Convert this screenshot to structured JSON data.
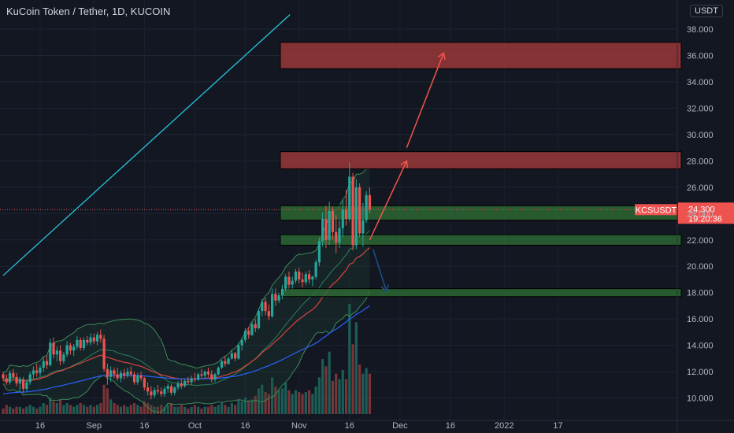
{
  "header": {
    "title": "KuCoin Token / Tether, 1D, KUCOIN",
    "currency_button": "USDT"
  },
  "colors": {
    "background": "#131722",
    "up": "#26a69a",
    "down": "#ef5350",
    "trendline": "#26c6da",
    "resistance_zone": "#a13a3a",
    "support_zone": "#2e6b34",
    "arrow_up": "#f0554c",
    "arrow_down": "#1e4e8c",
    "bb_band": "#3c8a57",
    "ma_red": "#d8423b",
    "ma_blue": "#2962ff"
  },
  "chart_data": {
    "type": "candlestick",
    "symbol": "KCSUSDT",
    "interval": "1D",
    "y_axis": {
      "ticks": [
        "10.000",
        "12.000",
        "14.000",
        "16.000",
        "18.000",
        "20.000",
        "22.000",
        "24.000",
        "26.000",
        "28.000",
        "30.000",
        "32.000",
        "34.000",
        "36.000",
        "38.000"
      ],
      "range": [
        8.3,
        38.9
      ],
      "position": "right"
    },
    "x_axis": {
      "ticks": [
        "16",
        "Sep",
        "16",
        "Oct",
        "16",
        "Nov",
        "16",
        "Dec",
        "16",
        "2022",
        "17"
      ],
      "start_date": "2021-08-10"
    },
    "last_price": {
      "symbol": "KCSUSDT",
      "value": "24.300",
      "countdown": "19:20:36"
    },
    "candles": [
      [
        11.8,
        12.0,
        11.3,
        11.5
      ],
      [
        11.5,
        11.8,
        11.0,
        11.2
      ],
      [
        11.2,
        12.1,
        11.0,
        11.9
      ],
      [
        11.9,
        12.2,
        11.4,
        11.6
      ],
      [
        11.6,
        11.9,
        10.9,
        11.1
      ],
      [
        11.1,
        11.6,
        10.6,
        11.4
      ],
      [
        11.4,
        11.6,
        10.4,
        10.7
      ],
      [
        10.7,
        11.4,
        10.5,
        11.2
      ],
      [
        11.2,
        12.0,
        11.0,
        11.8
      ],
      [
        11.8,
        12.4,
        11.5,
        12.1
      ],
      [
        12.1,
        12.6,
        11.6,
        11.9
      ],
      [
        11.9,
        12.5,
        11.6,
        12.3
      ],
      [
        12.3,
        13.1,
        12.0,
        12.8
      ],
      [
        12.8,
        13.2,
        12.2,
        12.5
      ],
      [
        12.5,
        14.5,
        12.4,
        14.2
      ],
      [
        14.2,
        14.6,
        13.0,
        13.3
      ],
      [
        13.3,
        13.9,
        12.8,
        13.6
      ],
      [
        13.6,
        14.0,
        12.5,
        12.8
      ],
      [
        12.8,
        13.5,
        12.6,
        13.3
      ],
      [
        13.3,
        14.3,
        13.1,
        14.0
      ],
      [
        14.0,
        14.2,
        13.3,
        13.6
      ],
      [
        13.6,
        14.1,
        13.2,
        13.9
      ],
      [
        13.9,
        14.7,
        13.7,
        14.4
      ],
      [
        14.4,
        14.6,
        13.6,
        13.8
      ],
      [
        13.8,
        14.6,
        13.6,
        14.4
      ],
      [
        14.4,
        14.7,
        14.0,
        14.2
      ],
      [
        14.2,
        14.9,
        14.0,
        14.6
      ],
      [
        14.6,
        14.9,
        14.1,
        14.3
      ],
      [
        14.3,
        15.0,
        14.0,
        14.8
      ],
      [
        14.8,
        15.2,
        14.2,
        14.5
      ],
      [
        14.5,
        14.8,
        12.0,
        12.2
      ],
      [
        12.2,
        12.6,
        11.0,
        11.6
      ],
      [
        11.6,
        12.4,
        11.2,
        12.1
      ],
      [
        12.1,
        12.3,
        11.5,
        11.8
      ],
      [
        11.8,
        12.3,
        11.3,
        11.5
      ],
      [
        11.5,
        12.1,
        11.2,
        11.9
      ],
      [
        11.9,
        12.2,
        11.4,
        11.7
      ],
      [
        11.7,
        12.3,
        11.5,
        12.0
      ],
      [
        12.0,
        12.4,
        11.6,
        11.8
      ],
      [
        11.8,
        12.0,
        11.0,
        11.2
      ],
      [
        11.2,
        11.9,
        11.0,
        11.7
      ],
      [
        11.7,
        12.0,
        11.3,
        11.5
      ],
      [
        11.5,
        11.6,
        10.6,
        10.8
      ],
      [
        10.8,
        11.2,
        10.2,
        10.5
      ],
      [
        10.5,
        10.9,
        9.9,
        10.2
      ],
      [
        10.2,
        10.8,
        10.0,
        10.6
      ],
      [
        10.6,
        11.0,
        10.3,
        10.5
      ],
      [
        10.5,
        10.8,
        10.1,
        10.3
      ],
      [
        10.3,
        10.9,
        10.1,
        10.7
      ],
      [
        10.7,
        11.1,
        10.4,
        10.9
      ],
      [
        10.9,
        11.1,
        10.2,
        10.4
      ],
      [
        10.4,
        10.9,
        10.2,
        10.8
      ],
      [
        10.8,
        11.3,
        10.6,
        11.1
      ],
      [
        11.1,
        11.4,
        10.7,
        10.9
      ],
      [
        10.9,
        11.4,
        10.8,
        11.3
      ],
      [
        11.3,
        11.6,
        11.0,
        11.2
      ],
      [
        11.2,
        11.7,
        11.0,
        11.5
      ],
      [
        11.5,
        11.9,
        11.2,
        11.4
      ],
      [
        11.4,
        11.9,
        11.3,
        11.8
      ],
      [
        11.8,
        12.2,
        11.5,
        11.7
      ],
      [
        11.7,
        12.1,
        11.5,
        12.0
      ],
      [
        12.0,
        12.3,
        11.6,
        11.8
      ],
      [
        11.8,
        12.1,
        11.2,
        11.4
      ],
      [
        11.4,
        11.9,
        11.2,
        11.8
      ],
      [
        11.8,
        12.4,
        11.7,
        12.3
      ],
      [
        12.3,
        12.9,
        12.2,
        12.8
      ],
      [
        12.8,
        13.2,
        12.4,
        12.6
      ],
      [
        12.6,
        13.1,
        12.5,
        13.0
      ],
      [
        13.0,
        13.6,
        12.9,
        13.4
      ],
      [
        13.4,
        13.5,
        12.8,
        13.0
      ],
      [
        13.0,
        14.2,
        12.9,
        14.0
      ],
      [
        14.0,
        14.6,
        13.6,
        14.4
      ],
      [
        14.4,
        15.3,
        14.2,
        15.1
      ],
      [
        15.1,
        15.4,
        14.5,
        14.8
      ],
      [
        14.8,
        15.8,
        14.7,
        15.6
      ],
      [
        15.6,
        16.0,
        15.0,
        15.3
      ],
      [
        15.3,
        16.8,
        15.2,
        16.6
      ],
      [
        16.6,
        17.5,
        16.2,
        17.3
      ],
      [
        17.3,
        17.6,
        16.3,
        16.6
      ],
      [
        16.6,
        17.1,
        15.9,
        16.2
      ],
      [
        16.2,
        18.3,
        16.1,
        17.9
      ],
      [
        17.9,
        18.3,
        17.0,
        17.4
      ],
      [
        17.4,
        18.0,
        17.2,
        17.8
      ],
      [
        17.8,
        18.6,
        17.5,
        18.3
      ],
      [
        18.3,
        19.4,
        18.1,
        19.2
      ],
      [
        19.2,
        19.6,
        18.3,
        18.6
      ],
      [
        18.6,
        19.2,
        18.3,
        18.9
      ],
      [
        18.9,
        19.8,
        18.7,
        19.6
      ],
      [
        19.6,
        19.9,
        18.7,
        19.0
      ],
      [
        19.0,
        19.5,
        18.4,
        18.8
      ],
      [
        18.8,
        19.6,
        18.6,
        19.4
      ],
      [
        19.4,
        19.7,
        18.7,
        19.0
      ],
      [
        19.0,
        19.3,
        18.5,
        19.2
      ],
      [
        19.2,
        20.5,
        19.0,
        20.3
      ],
      [
        20.3,
        22.2,
        20.0,
        21.9
      ],
      [
        21.9,
        24.1,
        21.5,
        23.6
      ],
      [
        23.6,
        24.6,
        21.4,
        22.0
      ],
      [
        22.0,
        24.9,
        21.6,
        24.2
      ],
      [
        24.2,
        24.5,
        22.0,
        22.6
      ],
      [
        22.6,
        23.9,
        21.0,
        21.8
      ],
      [
        21.8,
        23.5,
        21.4,
        22.9
      ],
      [
        22.9,
        25.0,
        22.2,
        24.3
      ],
      [
        24.3,
        25.8,
        23.1,
        23.6
      ],
      [
        23.6,
        27.9,
        23.4,
        26.8
      ],
      [
        26.8,
        27.1,
        21.2,
        21.6
      ],
      [
        21.6,
        26.6,
        21.3,
        26.0
      ],
      [
        26.0,
        26.3,
        22.2,
        22.5
      ],
      [
        22.5,
        24.8,
        21.5,
        23.5
      ],
      [
        23.5,
        25.7,
        23.3,
        25.4
      ],
      [
        25.4,
        26.0,
        24.0,
        24.3
      ]
    ],
    "volume": [
      3,
      5,
      4,
      3,
      4,
      4,
      3,
      4,
      5,
      4,
      3,
      4,
      6,
      5,
      9,
      7,
      6,
      8,
      5,
      6,
      5,
      4,
      5,
      6,
      5,
      4,
      5,
      4,
      5,
      6,
      16,
      14,
      8,
      6,
      5,
      4,
      5,
      4,
      5,
      6,
      5,
      4,
      7,
      6,
      5,
      4,
      4,
      5,
      4,
      5,
      6,
      4,
      4,
      5,
      4,
      3,
      4,
      5,
      4,
      3,
      4,
      4,
      5,
      4,
      5,
      6,
      5,
      4,
      6,
      5,
      8,
      7,
      9,
      7,
      8,
      10,
      14,
      16,
      12,
      11,
      20,
      15,
      13,
      14,
      17,
      13,
      11,
      13,
      12,
      11,
      12,
      13,
      11,
      15,
      20,
      30,
      26,
      34,
      18,
      22,
      19,
      24,
      19,
      60,
      38,
      50,
      27,
      22,
      25,
      22
    ],
    "overlays": {
      "trendline": {
        "from": {
          "index": 0,
          "price": 19.3
        },
        "to": {
          "index": 115,
          "price": 46.0
        }
      },
      "resistance_zones": [
        {
          "top": 37.0,
          "bottom": 35.0
        },
        {
          "top": 28.7,
          "bottom": 27.4
        }
      ],
      "support_zones": [
        {
          "top": 24.6,
          "bottom": 23.5
        },
        {
          "top": 22.4,
          "bottom": 21.6
        },
        {
          "top": 18.3,
          "bottom": 17.7
        }
      ],
      "arrows": [
        {
          "direction": "up",
          "from": {
            "index": 109,
            "price": 22.0
          },
          "to": {
            "index": 120,
            "price": 28.0
          }
        },
        {
          "direction": "up",
          "from": {
            "index": 120,
            "price": 29.0
          },
          "to": {
            "index": 131,
            "price": 36.2
          }
        },
        {
          "direction": "down",
          "from": {
            "index": 110,
            "price": 21.3
          },
          "to": {
            "index": 114,
            "price": 18.1
          }
        }
      ]
    },
    "grid": true,
    "legend": "none"
  }
}
